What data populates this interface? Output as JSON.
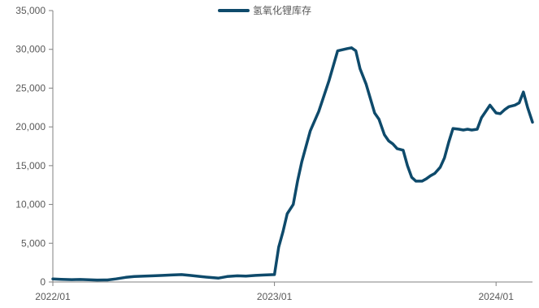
{
  "chart_data": {
    "type": "line",
    "title": "",
    "xlabel": "",
    "ylabel": "",
    "ylim": [
      0,
      35000
    ],
    "y_ticks": [
      0,
      5000,
      10000,
      15000,
      20000,
      25000,
      30000,
      35000
    ],
    "y_tick_labels": [
      "0",
      "5,000",
      "10,000",
      "15,000",
      "20,000",
      "25,000",
      "30,000",
      "35,000"
    ],
    "x_ticks": [
      "2022-01-01",
      "2023-01-01",
      "2024-01-01"
    ],
    "x_tick_labels": [
      "2022/01",
      "2023/01",
      "2024/01"
    ],
    "xlim": [
      "2022-01-01",
      "2024-03-01"
    ],
    "grid": false,
    "legend": {
      "position": "top-center",
      "entries": [
        "氢氧化锂库存"
      ]
    },
    "colors": {
      "series": "#0E4A6B",
      "axis": "#808080",
      "text": "#595959"
    },
    "series": [
      {
        "name": "氢氧化锂库存",
        "x": [
          "2022-01-01",
          "2022-01-15",
          "2022-02-01",
          "2022-02-15",
          "2022-03-01",
          "2022-03-15",
          "2022-04-01",
          "2022-04-15",
          "2022-05-01",
          "2022-05-15",
          "2022-06-01",
          "2022-06-15",
          "2022-07-01",
          "2022-07-15",
          "2022-08-01",
          "2022-08-15",
          "2022-09-01",
          "2022-09-15",
          "2022-10-01",
          "2022-10-15",
          "2022-11-01",
          "2022-11-15",
          "2022-12-01",
          "2022-12-15",
          "2023-01-01",
          "2023-01-08",
          "2023-01-15",
          "2023-01-22",
          "2023-02-01",
          "2023-02-08",
          "2023-02-15",
          "2023-03-01",
          "2023-03-15",
          "2023-04-01",
          "2023-04-15",
          "2023-05-01",
          "2023-05-08",
          "2023-05-15",
          "2023-05-22",
          "2023-06-01",
          "2023-06-15",
          "2023-06-22",
          "2023-07-01",
          "2023-07-08",
          "2023-07-15",
          "2023-07-22",
          "2023-08-01",
          "2023-08-08",
          "2023-08-15",
          "2023-08-22",
          "2023-09-01",
          "2023-09-08",
          "2023-09-15",
          "2023-09-22",
          "2023-10-01",
          "2023-10-08",
          "2023-10-15",
          "2023-10-22",
          "2023-11-01",
          "2023-11-08",
          "2023-11-15",
          "2023-11-22",
          "2023-12-01",
          "2023-12-08",
          "2023-12-15",
          "2023-12-22",
          "2024-01-01",
          "2024-01-08",
          "2024-01-15",
          "2024-01-22",
          "2024-02-01",
          "2024-02-08",
          "2024-02-15",
          "2024-02-22",
          "2024-03-01"
        ],
        "values": [
          400,
          350,
          300,
          330,
          280,
          250,
          260,
          400,
          600,
          700,
          750,
          800,
          850,
          900,
          950,
          850,
          700,
          600,
          500,
          700,
          800,
          750,
          850,
          900,
          950,
          4500,
          6500,
          8800,
          10000,
          13000,
          15500,
          19500,
          22000,
          26000,
          29800,
          30100,
          30200,
          29800,
          27500,
          25500,
          21800,
          21000,
          19000,
          18200,
          17800,
          17200,
          17000,
          15000,
          13500,
          13000,
          13000,
          13300,
          13700,
          14000,
          14800,
          16000,
          18000,
          19800,
          19700,
          19600,
          19700,
          19600,
          19700,
          21200,
          22000,
          22800,
          21800,
          21700,
          22200,
          22600,
          22800,
          23100,
          24500,
          22500,
          20600
        ]
      }
    ]
  }
}
